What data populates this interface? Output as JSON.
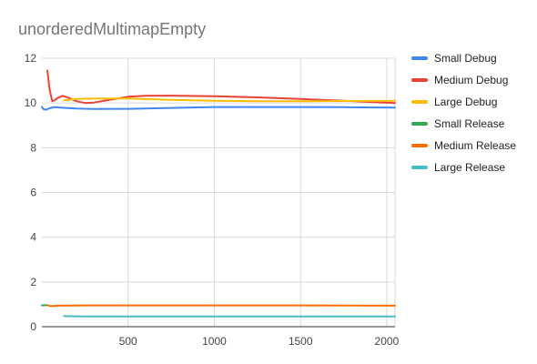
{
  "chart_data": {
    "type": "line",
    "title": "unorderedMultimapEmpty",
    "xlabel": "",
    "ylabel": "",
    "xlim": [
      0,
      2048
    ],
    "ylim": [
      0,
      12
    ],
    "x_ticks": [
      500,
      1000,
      1500,
      2000
    ],
    "y_ticks": [
      0,
      2,
      4,
      6,
      8,
      10,
      12
    ],
    "grid": true,
    "legend_position": "right",
    "series": [
      {
        "name": "Small Debug",
        "color": "#4285F4",
        "points": [
          [
            0,
            9.82
          ],
          [
            10,
            9.72
          ],
          [
            25,
            9.7
          ],
          [
            50,
            9.78
          ],
          [
            75,
            9.82
          ],
          [
            100,
            9.8
          ],
          [
            150,
            9.77
          ],
          [
            200,
            9.75
          ],
          [
            300,
            9.73
          ],
          [
            500,
            9.74
          ],
          [
            750,
            9.78
          ],
          [
            1000,
            9.82
          ],
          [
            1250,
            9.82
          ],
          [
            1500,
            9.82
          ],
          [
            1750,
            9.81
          ],
          [
            2048,
            9.79
          ]
        ]
      },
      {
        "name": "Medium Debug",
        "color": "#EA4335",
        "points": [
          [
            32,
            11.45
          ],
          [
            45,
            10.6
          ],
          [
            60,
            10.08
          ],
          [
            75,
            10.12
          ],
          [
            90,
            10.22
          ],
          [
            120,
            10.32
          ],
          [
            160,
            10.22
          ],
          [
            200,
            10.08
          ],
          [
            250,
            10.0
          ],
          [
            300,
            10.02
          ],
          [
            400,
            10.15
          ],
          [
            500,
            10.28
          ],
          [
            600,
            10.32
          ],
          [
            750,
            10.33
          ],
          [
            1000,
            10.3
          ],
          [
            1250,
            10.25
          ],
          [
            1500,
            10.18
          ],
          [
            1750,
            10.1
          ],
          [
            2048,
            10.0
          ]
        ]
      },
      {
        "name": "Large Debug",
        "color": "#FBBC04",
        "points": [
          [
            128,
            10.12
          ],
          [
            200,
            10.18
          ],
          [
            300,
            10.2
          ],
          [
            400,
            10.2
          ],
          [
            500,
            10.2
          ],
          [
            750,
            10.14
          ],
          [
            1000,
            10.1
          ],
          [
            1250,
            10.08
          ],
          [
            1500,
            10.08
          ],
          [
            1750,
            10.09
          ],
          [
            2048,
            10.1
          ]
        ]
      },
      {
        "name": "Small Release",
        "color": "#34A853",
        "points": [
          [
            0,
            0.95
          ],
          [
            32,
            0.97
          ]
        ]
      },
      {
        "name": "Medium Release",
        "color": "#FF6D01",
        "points": [
          [
            32,
            0.96
          ],
          [
            50,
            0.92
          ],
          [
            75,
            0.93
          ],
          [
            100,
            0.94
          ],
          [
            250,
            0.95
          ],
          [
            500,
            0.95
          ],
          [
            1000,
            0.95
          ],
          [
            1500,
            0.95
          ],
          [
            2048,
            0.94
          ]
        ]
      },
      {
        "name": "Large Release",
        "color": "#46BDC6",
        "points": [
          [
            128,
            0.47
          ],
          [
            250,
            0.46
          ],
          [
            500,
            0.46
          ],
          [
            1000,
            0.46
          ],
          [
            1500,
            0.46
          ],
          [
            2048,
            0.46
          ]
        ]
      }
    ]
  }
}
